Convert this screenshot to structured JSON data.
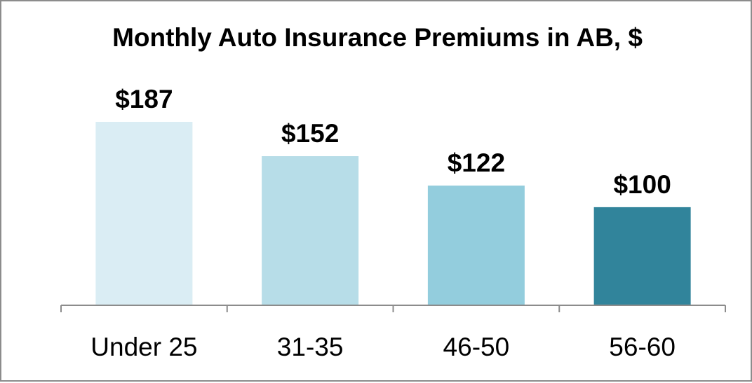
{
  "chart_data": {
    "type": "bar",
    "title": "Monthly Auto Insurance Premiums in AB, $",
    "categories": [
      "Under 25",
      "31-35",
      "46-50",
      "56-60"
    ],
    "values": [
      187,
      152,
      122,
      100
    ],
    "data_labels": [
      "$187",
      "$152",
      "$122",
      "$100"
    ],
    "colors": [
      "#daedf4",
      "#b7dde8",
      "#93cddd",
      "#31849b"
    ],
    "xlabel": "",
    "ylabel": "",
    "ylim": [
      0,
      187
    ],
    "grid": false,
    "legend": "none"
  }
}
